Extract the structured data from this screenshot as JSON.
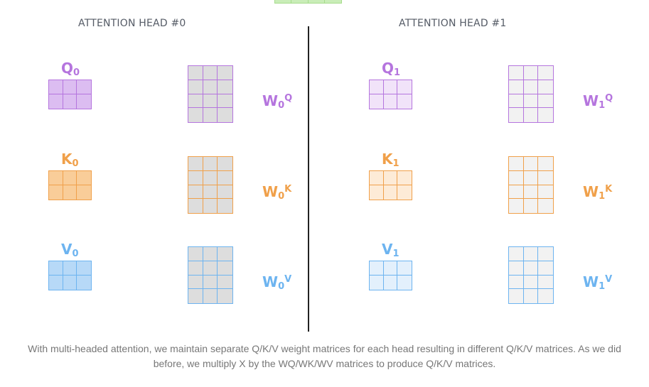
{
  "top_stub_color": "#a7dc8d",
  "heads": [
    {
      "title": "ATTENTION HEAD #0",
      "rows": [
        {
          "name": "q",
          "label": {
            "main": "Q",
            "sub": "0"
          },
          "weight": {
            "main": "W",
            "sub": "0",
            "sup": "Q"
          },
          "color": "#b575de",
          "fill": "#dcbdf1",
          "weight_fill": "#dddddd"
        },
        {
          "name": "k",
          "label": {
            "main": "K",
            "sub": "0"
          },
          "weight": {
            "main": "W",
            "sub": "0",
            "sup": "K"
          },
          "color": "#f0a04a",
          "fill": "#f9cd99",
          "weight_fill": "#dddddd"
        },
        {
          "name": "v",
          "label": {
            "main": "V",
            "sub": "0"
          },
          "weight": {
            "main": "W",
            "sub": "0",
            "sup": "V"
          },
          "color": "#6db4f0",
          "fill": "#b7d9f7",
          "weight_fill": "#dddddd"
        }
      ]
    },
    {
      "title": "ATTENTION HEAD #1",
      "rows": [
        {
          "name": "q",
          "label": {
            "main": "Q",
            "sub": "1"
          },
          "weight": {
            "main": "W",
            "sub": "1",
            "sup": "Q"
          },
          "color": "#b575de",
          "fill": "#f1e3f9",
          "weight_fill": "#f2f2f2"
        },
        {
          "name": "k",
          "label": {
            "main": "K",
            "sub": "1"
          },
          "weight": {
            "main": "W",
            "sub": "1",
            "sup": "K"
          },
          "color": "#f0a04a",
          "fill": "#fdebd7",
          "weight_fill": "#f2f2f2"
        },
        {
          "name": "v",
          "label": {
            "main": "V",
            "sub": "1"
          },
          "weight": {
            "main": "W",
            "sub": "1",
            "sup": "V"
          },
          "color": "#6db4f0",
          "fill": "#e3f0fc",
          "weight_fill": "#f2f2f2"
        }
      ]
    }
  ],
  "caption": {
    "line1": "With multi-headed attention, we maintain separate Q/K/V weight matrices for each head resulting in different Q/K/V matrices. As we did",
    "line2": "before, we multiply X by the WQ/WK/WV matrices to produce Q/K/V matrices."
  }
}
